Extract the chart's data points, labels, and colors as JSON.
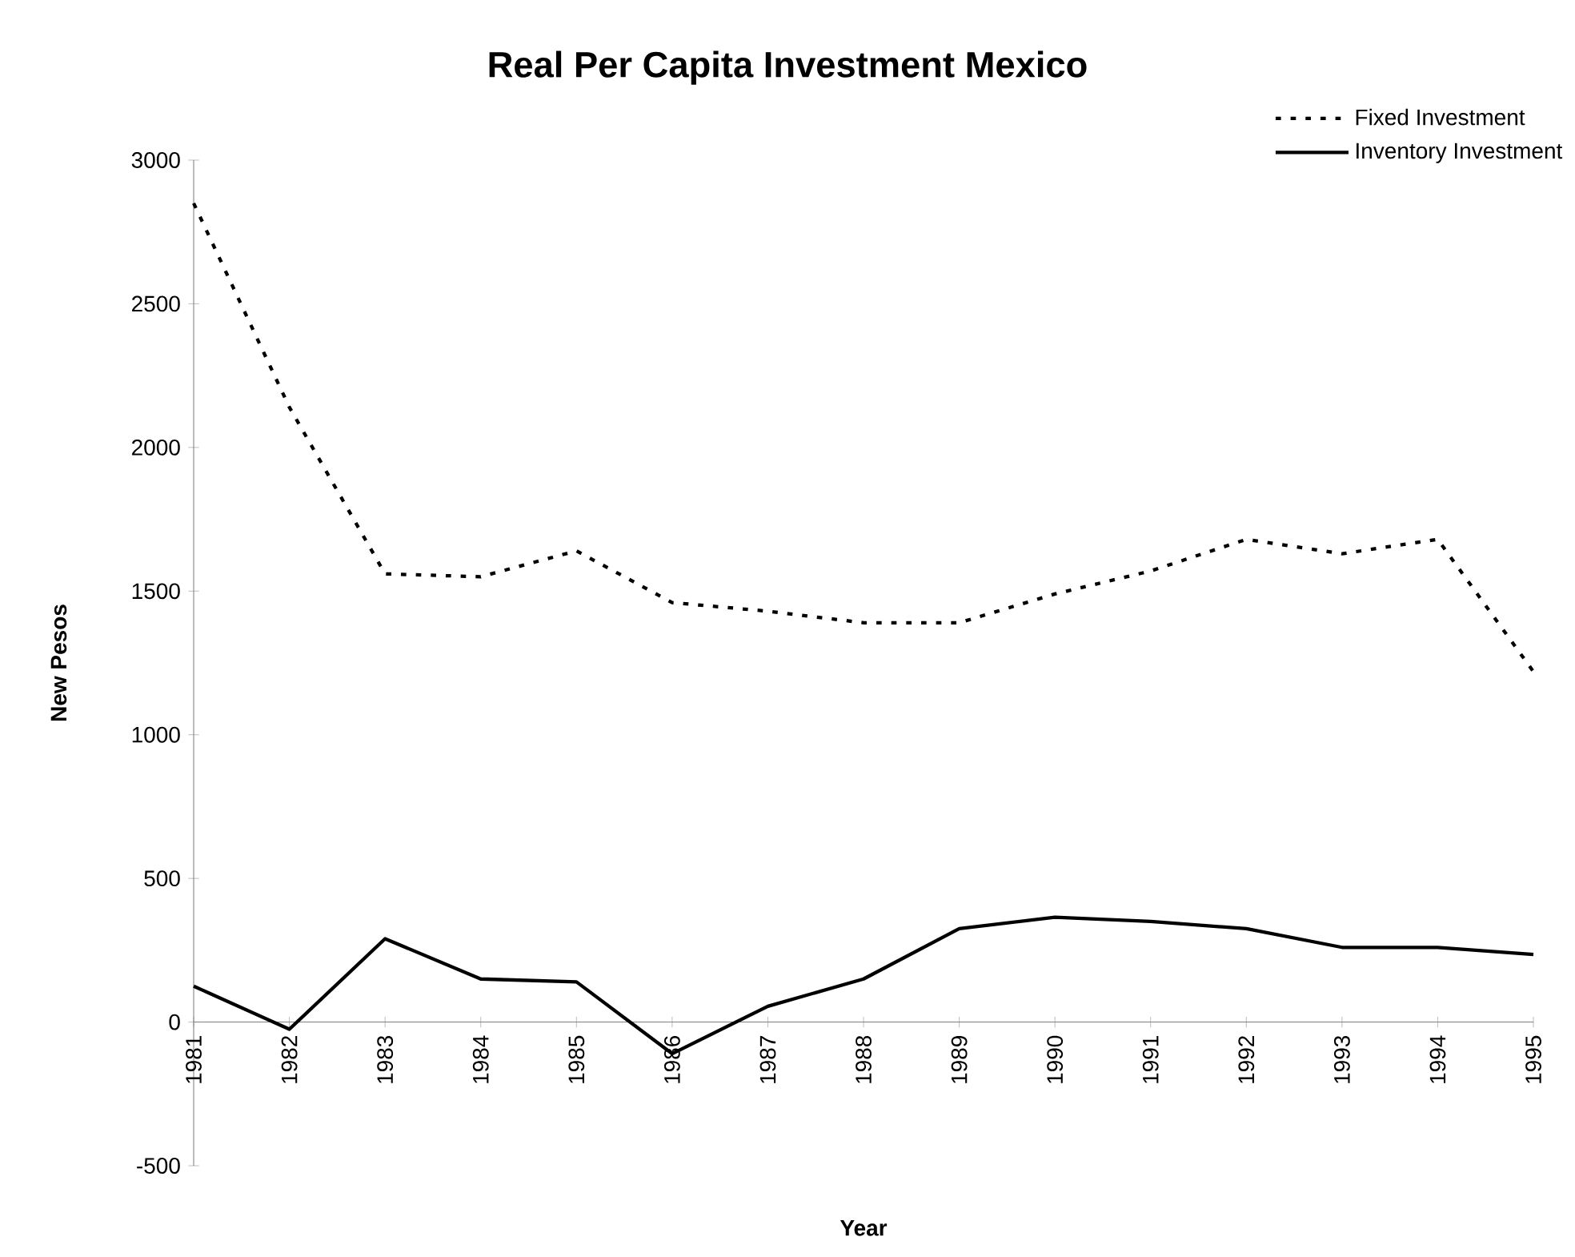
{
  "chart_data": {
    "type": "line",
    "title": "Real Per Capita Investment Mexico",
    "xlabel": "Year",
    "ylabel": "New Pesos",
    "categories": [
      "1981",
      "1982",
      "1983",
      "1984",
      "1985",
      "1986",
      "1987",
      "1988",
      "1989",
      "1990",
      "1991",
      "1992",
      "1993",
      "1994",
      "1995"
    ],
    "series": [
      {
        "name": "Fixed Investment",
        "color": "#000000",
        "line_style": "dotted",
        "values": [
          2850,
          2140,
          1560,
          1550,
          1640,
          1460,
          1430,
          1390,
          1390,
          1490,
          1570,
          1680,
          1630,
          1680,
          1220
        ]
      },
      {
        "name": "Inventory Investment",
        "color": "#000000",
        "line_style": "solid",
        "values": [
          125,
          -25,
          290,
          150,
          140,
          -110,
          55,
          150,
          325,
          365,
          350,
          325,
          260,
          260,
          235
        ]
      }
    ],
    "ylim": [
      -500,
      3000
    ],
    "yticks": [
      -500,
      0,
      500,
      1000,
      1500,
      2000,
      2500,
      3000
    ],
    "grid": false,
    "legend": "top right",
    "marker": "none"
  }
}
